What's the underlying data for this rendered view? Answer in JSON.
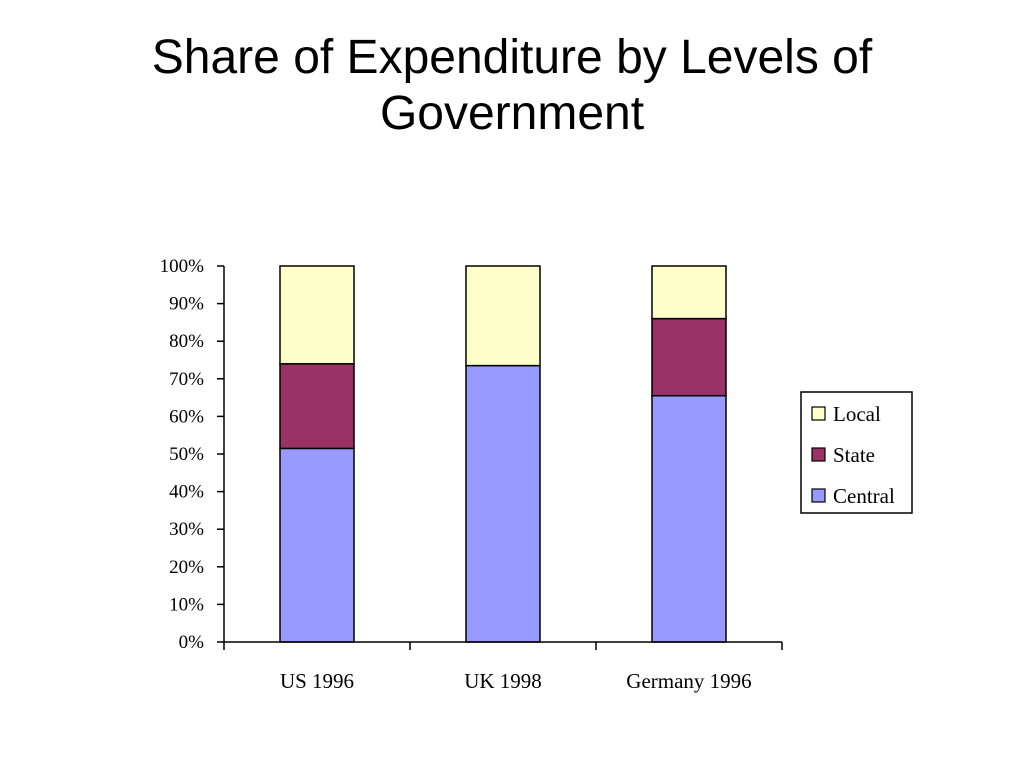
{
  "slide": {
    "title_line1": "Share of Expenditure by Levels of",
    "title_line2": "Government"
  },
  "chart_data": {
    "type": "bar",
    "stacked": true,
    "categories": [
      "US 1996",
      "UK 1998",
      "Germany 1996"
    ],
    "series": [
      {
        "name": "Central",
        "values": [
          51.5,
          73.5,
          65.5
        ],
        "color": "#9999ff"
      },
      {
        "name": "State",
        "values": [
          22.5,
          0,
          20.5
        ],
        "color": "#993366"
      },
      {
        "name": "Local",
        "values": [
          26,
          26.5,
          14
        ],
        "color": "#ffffcc"
      }
    ],
    "ylim": [
      0,
      100
    ],
    "yticks": [
      "0%",
      "10%",
      "20%",
      "30%",
      "40%",
      "50%",
      "60%",
      "70%",
      "80%",
      "90%",
      "100%"
    ],
    "legend": {
      "position": "right",
      "order": [
        "Local",
        "State",
        "Central"
      ]
    },
    "grid": false
  }
}
